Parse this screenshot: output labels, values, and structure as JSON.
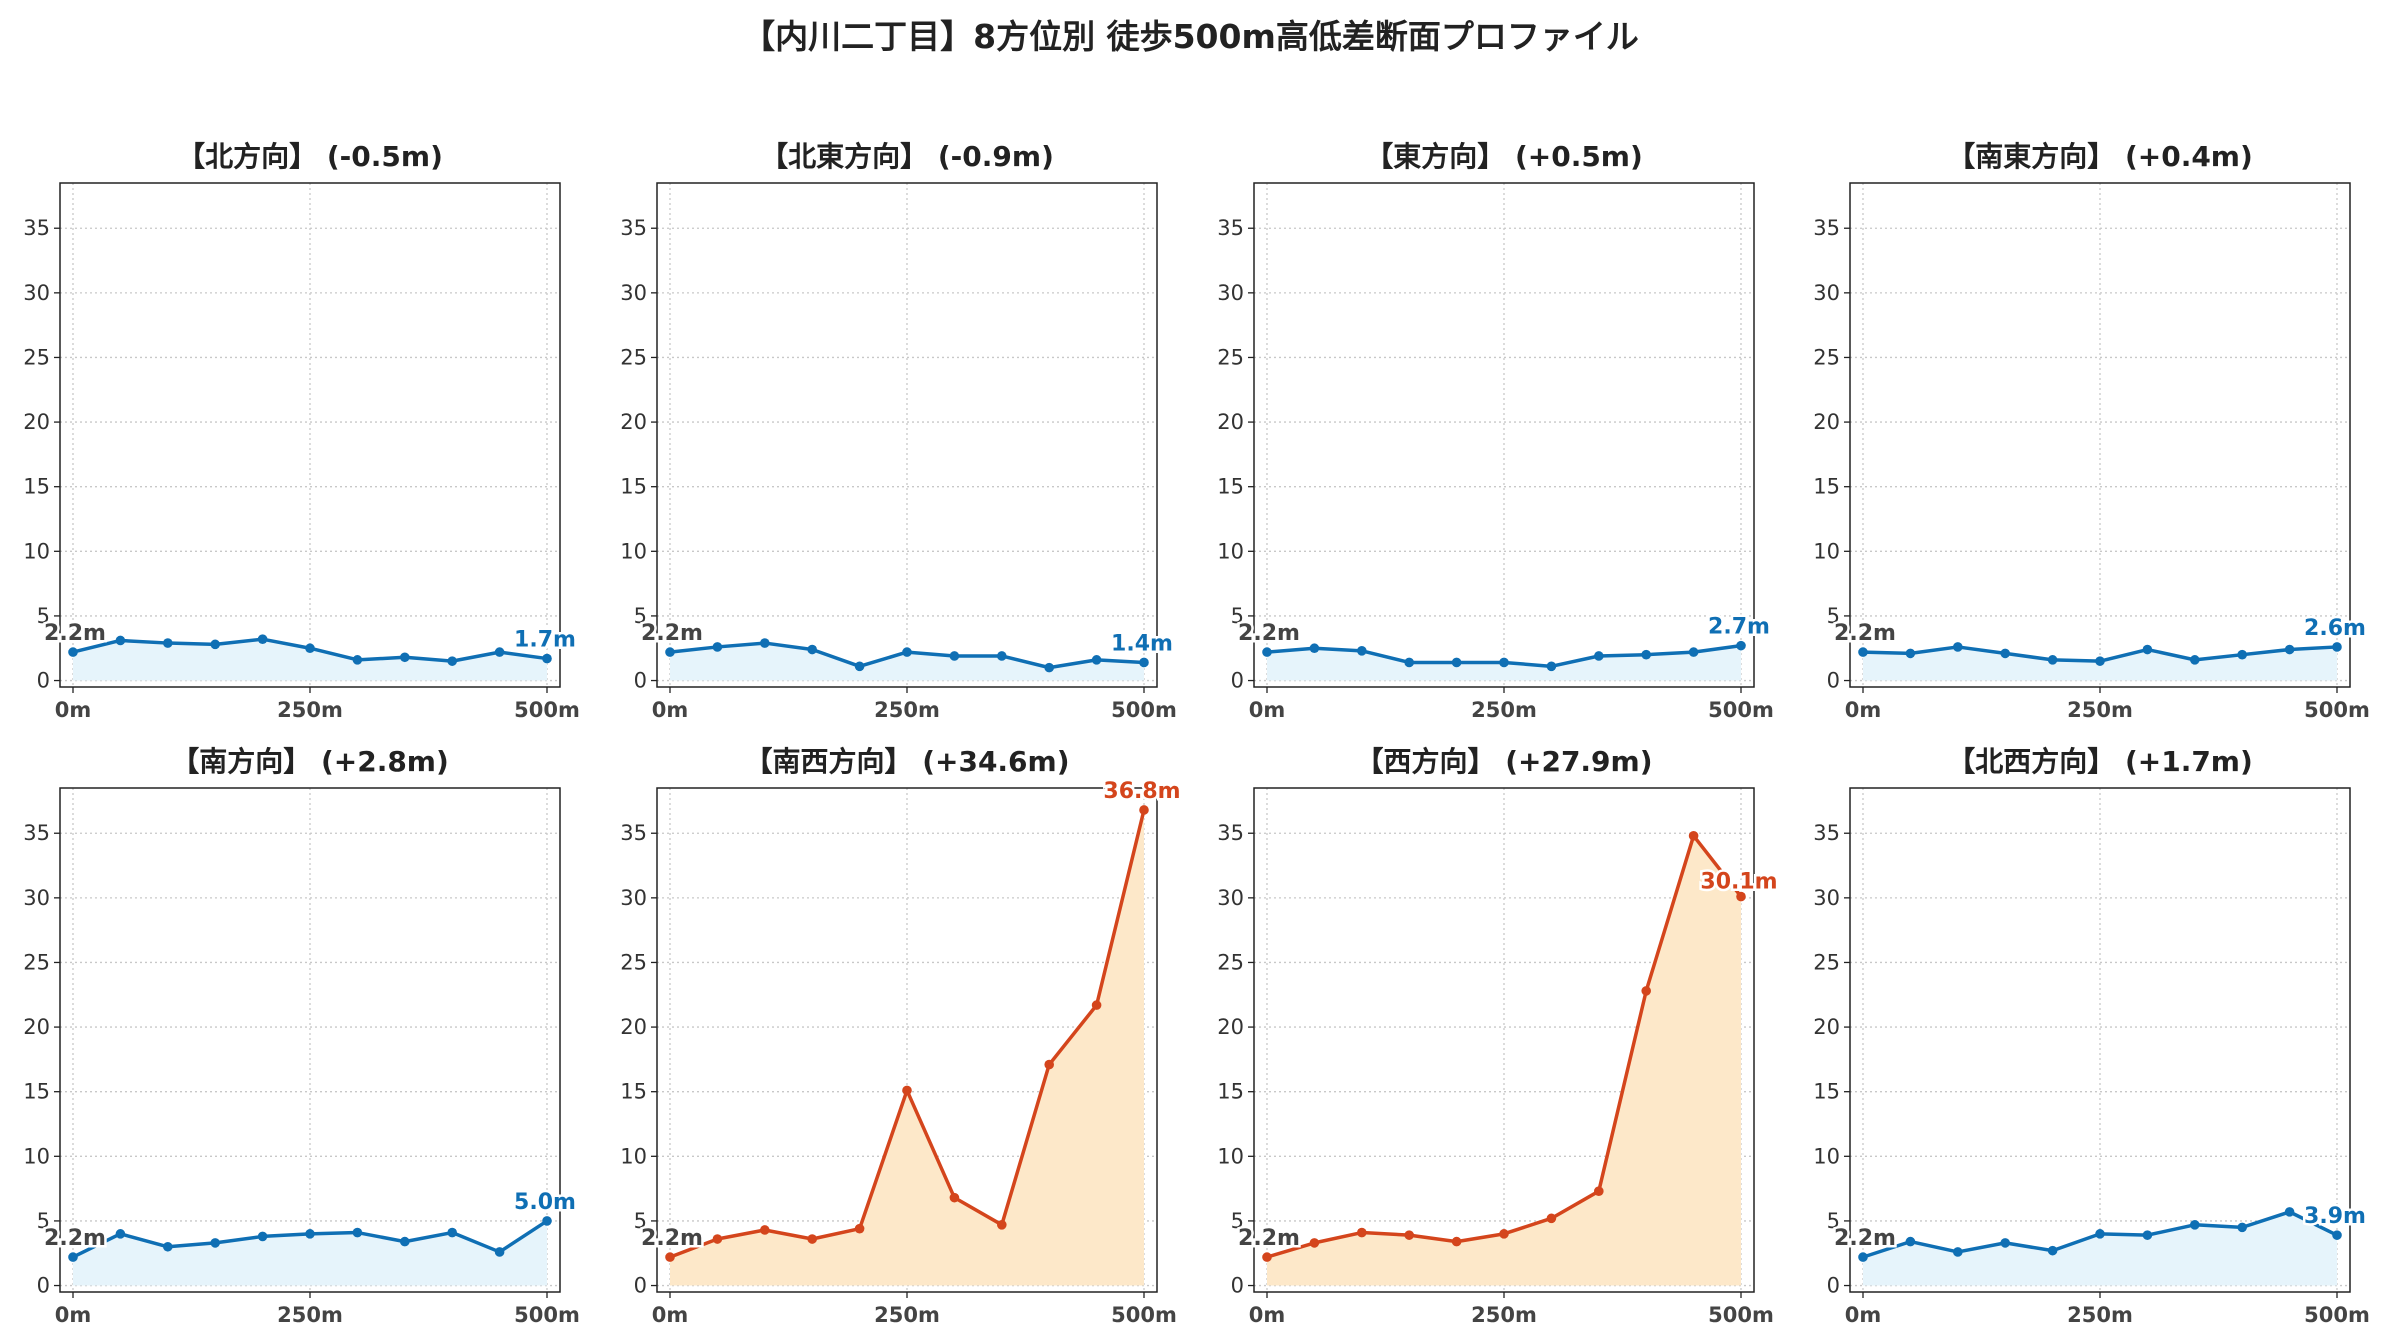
{
  "title": "【内川二丁目】8方位別 徒歩500m高低差断面プロファイル",
  "colors": {
    "normal_line": "#0f6fb4",
    "normal_fill": "#e6f4fb",
    "steep_line": "#d4451c",
    "steep_fill": "#fde8c9",
    "grid": "#c8c8c8"
  },
  "chart_data": [
    {
      "type": "line",
      "title": "【北方向】 (-0.5m)",
      "style": "normal",
      "x": [
        0,
        50,
        100,
        150,
        200,
        250,
        300,
        350,
        400,
        450,
        500
      ],
      "y": [
        2.2,
        3.1,
        2.9,
        2.8,
        3.2,
        2.5,
        1.6,
        1.8,
        1.5,
        2.2,
        1.7
      ],
      "start_label": "2.2m",
      "end_label": "1.7m",
      "xticks": [
        "0m",
        "250m",
        "500m"
      ],
      "yticks": [
        0,
        5,
        10,
        15,
        20,
        25,
        30,
        35
      ],
      "ylim": [
        -0.5,
        38.5
      ],
      "grid": true
    },
    {
      "type": "line",
      "title": "【北東方向】 (-0.9m)",
      "style": "normal",
      "x": [
        0,
        50,
        100,
        150,
        200,
        250,
        300,
        350,
        400,
        450,
        500
      ],
      "y": [
        2.2,
        2.6,
        2.9,
        2.4,
        1.1,
        2.2,
        1.9,
        1.9,
        1.0,
        1.6,
        1.4
      ],
      "start_label": "2.2m",
      "end_label": "1.4m",
      "xticks": [
        "0m",
        "250m",
        "500m"
      ],
      "yticks": [
        0,
        5,
        10,
        15,
        20,
        25,
        30,
        35
      ],
      "ylim": [
        -0.5,
        38.5
      ],
      "grid": true
    },
    {
      "type": "line",
      "title": "【東方向】 (+0.5m)",
      "style": "normal",
      "x": [
        0,
        50,
        100,
        150,
        200,
        250,
        300,
        350,
        400,
        450,
        500
      ],
      "y": [
        2.2,
        2.5,
        2.3,
        1.4,
        1.4,
        1.4,
        1.1,
        1.9,
        2.0,
        2.2,
        2.7
      ],
      "start_label": "2.2m",
      "end_label": "2.7m",
      "xticks": [
        "0m",
        "250m",
        "500m"
      ],
      "yticks": [
        0,
        5,
        10,
        15,
        20,
        25,
        30,
        35
      ],
      "ylim": [
        -0.5,
        38.5
      ],
      "grid": true
    },
    {
      "type": "line",
      "title": "【南東方向】 (+0.4m)",
      "style": "normal",
      "x": [
        0,
        50,
        100,
        150,
        200,
        250,
        300,
        350,
        400,
        450,
        500
      ],
      "y": [
        2.2,
        2.1,
        2.6,
        2.1,
        1.6,
        1.5,
        2.4,
        1.6,
        2.0,
        2.4,
        2.6
      ],
      "start_label": "2.2m",
      "end_label": "2.6m",
      "xticks": [
        "0m",
        "250m",
        "500m"
      ],
      "yticks": [
        0,
        5,
        10,
        15,
        20,
        25,
        30,
        35
      ],
      "ylim": [
        -0.5,
        38.5
      ],
      "grid": true
    },
    {
      "type": "line",
      "title": "【南方向】 (+2.8m)",
      "style": "normal",
      "x": [
        0,
        50,
        100,
        150,
        200,
        250,
        300,
        350,
        400,
        450,
        500
      ],
      "y": [
        2.2,
        4.0,
        3.0,
        3.3,
        3.8,
        4.0,
        4.1,
        3.4,
        4.1,
        2.6,
        5.0
      ],
      "start_label": "2.2m",
      "end_label": "5.0m",
      "xticks": [
        "0m",
        "250m",
        "500m"
      ],
      "yticks": [
        0,
        5,
        10,
        15,
        20,
        25,
        30,
        35
      ],
      "ylim": [
        -0.5,
        38.5
      ],
      "grid": true
    },
    {
      "type": "line",
      "title": "【南西方向】 (+34.6m)",
      "style": "steep",
      "x": [
        0,
        50,
        100,
        150,
        200,
        250,
        300,
        350,
        400,
        450,
        500
      ],
      "y": [
        2.2,
        3.6,
        4.3,
        3.6,
        4.4,
        15.1,
        6.8,
        4.7,
        17.1,
        21.7,
        36.8
      ],
      "start_label": "2.2m",
      "end_label": "36.8m",
      "xticks": [
        "0m",
        "250m",
        "500m"
      ],
      "yticks": [
        0,
        5,
        10,
        15,
        20,
        25,
        30,
        35
      ],
      "ylim": [
        -0.5,
        38.5
      ],
      "grid": true
    },
    {
      "type": "line",
      "title": "【西方向】 (+27.9m)",
      "style": "steep",
      "x": [
        0,
        50,
        100,
        150,
        200,
        250,
        300,
        350,
        400,
        450,
        500
      ],
      "y": [
        2.2,
        3.3,
        4.1,
        3.9,
        3.4,
        4.0,
        5.2,
        7.3,
        22.8,
        34.8,
        30.1
      ],
      "start_label": "2.2m",
      "end_label": "30.1m",
      "xticks": [
        "0m",
        "250m",
        "500m"
      ],
      "yticks": [
        0,
        5,
        10,
        15,
        20,
        25,
        30,
        35
      ],
      "ylim": [
        -0.5,
        38.5
      ],
      "grid": true
    },
    {
      "type": "line",
      "title": "【北西方向】 (+1.7m)",
      "style": "normal",
      "x": [
        0,
        50,
        100,
        150,
        200,
        250,
        300,
        350,
        400,
        450,
        500
      ],
      "y": [
        2.2,
        3.4,
        2.6,
        3.3,
        2.7,
        4.0,
        3.9,
        4.7,
        4.5,
        5.7,
        3.9
      ],
      "start_label": "2.2m",
      "end_label": "3.9m",
      "xticks": [
        "0m",
        "250m",
        "500m"
      ],
      "yticks": [
        0,
        5,
        10,
        15,
        20,
        25,
        30,
        35
      ],
      "ylim": [
        -0.5,
        38.5
      ],
      "grid": true
    }
  ]
}
